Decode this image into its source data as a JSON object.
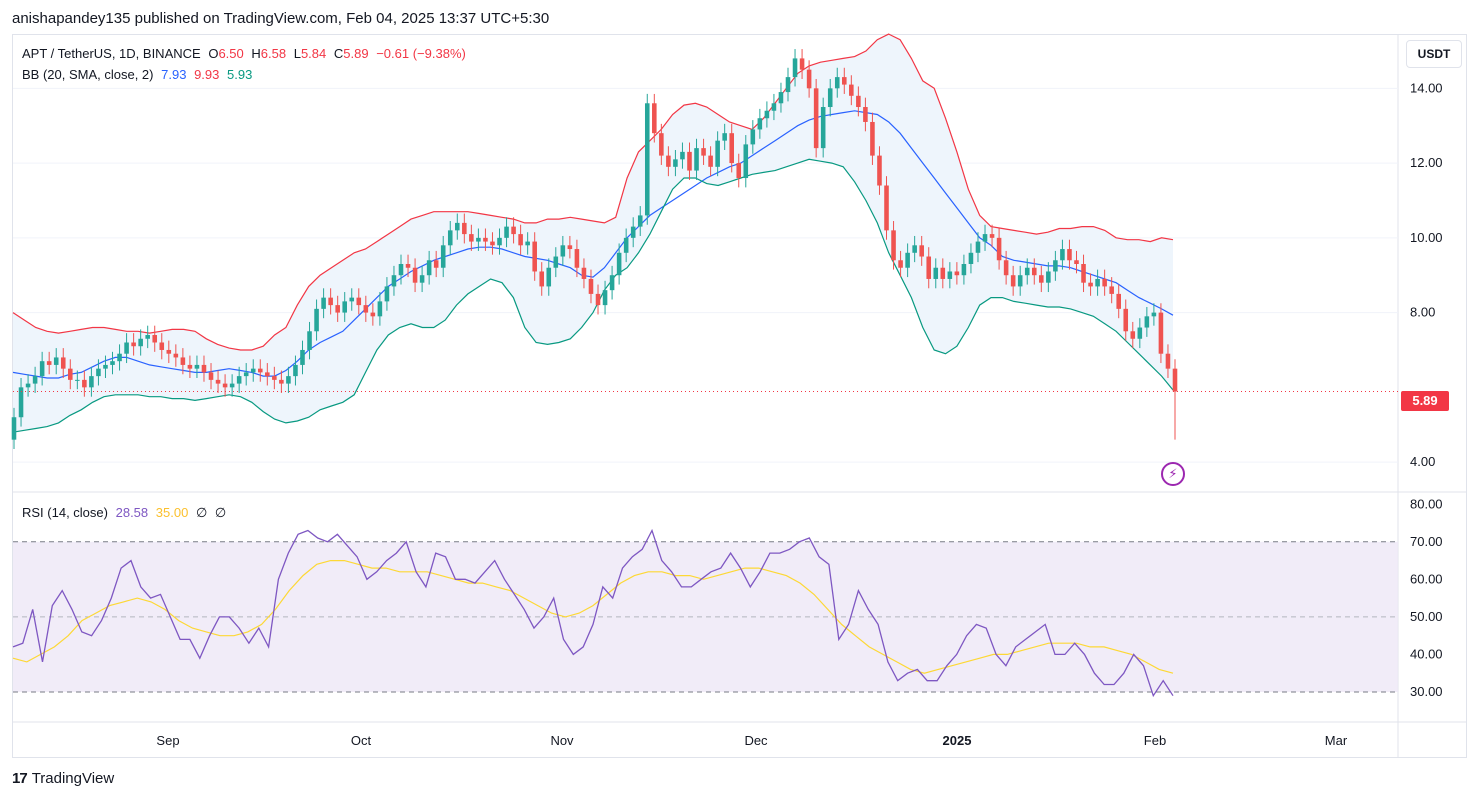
{
  "header": {
    "text": "anishapandey135 published on TradingView.com, Feb 04, 2025 13:37 UTC+5:30"
  },
  "legend": {
    "symbol": "APT / TetherUS, 1D, BINANCE",
    "o_label": "O",
    "o_val": "6.50",
    "h_label": "H",
    "h_val": "6.58",
    "l_label": "L",
    "l_val": "5.84",
    "c_label": "C",
    "c_val": "5.89",
    "change": "−0.61 (−9.38%)",
    "bb_label": "BB (20, SMA, close, 2)",
    "bb_basis": "7.93",
    "bb_upper": "9.93",
    "bb_lower": "5.93",
    "rsi_label": "RSI (14, close)",
    "rsi_val": "28.58",
    "rsi_ma": "35.00",
    "rsi_na1": "∅",
    "rsi_na2": "∅"
  },
  "currency_button": "USDT",
  "last_price_tag": "5.89",
  "footer": {
    "brand": "TradingView",
    "logo_glyph": "17"
  },
  "colors": {
    "up": "#26a69a",
    "down": "#ef5350",
    "bb_upper": "#f23645",
    "bb_basis": "#2962ff",
    "bb_lower": "#089981",
    "bb_fill": "#eef5fc",
    "rsi": "#7e57c2",
    "rsi_ma": "#fdd835",
    "rsi_band": "#ede7f6"
  },
  "icons": {
    "alert": "lightning-bolt-icon"
  },
  "chart_data": [
    {
      "type": "candlestick",
      "title": "APT / TetherUS, 1D, BINANCE",
      "y_ticks": [
        "14.00",
        "12.00",
        "10.00",
        "8.00",
        "4.00"
      ],
      "y_tick_values": [
        14,
        12,
        10,
        8,
        4
      ],
      "ylim": [
        3.2,
        15.4
      ],
      "x_ticks": [
        "Sep",
        "Oct",
        "Nov",
        "Dec",
        "2025",
        "Feb",
        "Mar"
      ],
      "last_close": 5.89,
      "closes": [
        5.2,
        6.0,
        6.1,
        6.3,
        6.7,
        6.6,
        6.8,
        6.5,
        6.2,
        6.2,
        6.0,
        6.3,
        6.5,
        6.6,
        6.7,
        6.9,
        7.2,
        7.1,
        7.3,
        7.4,
        7.2,
        7.0,
        6.9,
        6.8,
        6.6,
        6.5,
        6.6,
        6.4,
        6.2,
        6.1,
        6.0,
        6.1,
        6.3,
        6.4,
        6.5,
        6.4,
        6.3,
        6.2,
        6.1,
        6.3,
        6.6,
        7.0,
        7.5,
        8.1,
        8.4,
        8.2,
        8.0,
        8.3,
        8.4,
        8.2,
        8.0,
        7.9,
        8.3,
        8.7,
        9.0,
        9.3,
        9.2,
        8.8,
        9.0,
        9.4,
        9.2,
        9.8,
        10.2,
        10.4,
        10.1,
        9.9,
        10.0,
        9.9,
        9.8,
        10.0,
        10.3,
        10.1,
        9.8,
        9.9,
        9.1,
        8.7,
        9.2,
        9.5,
        9.8,
        9.7,
        9.2,
        8.9,
        8.5,
        8.2,
        8.6,
        9.0,
        9.6,
        10.0,
        10.3,
        10.6,
        13.6,
        12.8,
        12.2,
        11.9,
        12.1,
        12.3,
        11.8,
        12.4,
        12.2,
        11.9,
        12.6,
        12.8,
        12.0,
        11.6,
        12.5,
        12.9,
        13.2,
        13.4,
        13.6,
        13.9,
        14.3,
        14.8,
        14.5,
        14.0,
        12.4,
        13.5,
        14.0,
        14.3,
        14.1,
        13.8,
        13.5,
        13.1,
        12.2,
        11.4,
        10.2,
        9.4,
        9.2,
        9.6,
        9.8,
        9.5,
        8.9,
        9.2,
        8.9,
        9.1,
        9.0,
        9.3,
        9.6,
        9.9,
        10.1,
        10.0,
        9.4,
        9.0,
        8.7,
        9.0,
        9.2,
        9.0,
        8.8,
        9.1,
        9.4,
        9.7,
        9.4,
        9.3,
        8.8,
        8.7,
        8.9,
        8.7,
        8.5,
        8.1,
        7.5,
        7.3,
        7.6,
        7.9,
        8.0,
        6.9,
        6.5,
        5.89
      ],
      "bb_upper": [
        8.0,
        7.8,
        7.6,
        7.5,
        7.45,
        7.5,
        7.55,
        7.6,
        7.6,
        7.55,
        7.5,
        7.5,
        7.45,
        7.5,
        7.55,
        7.55,
        7.5,
        7.3,
        7.15,
        7.05,
        7.0,
        7.0,
        7.1,
        7.4,
        7.6,
        8.2,
        8.7,
        9.0,
        9.2,
        9.4,
        9.6,
        9.7,
        9.9,
        10.1,
        10.3,
        10.5,
        10.6,
        10.7,
        10.7,
        10.7,
        10.7,
        10.65,
        10.6,
        10.55,
        10.5,
        10.4,
        10.4,
        10.5,
        10.5,
        10.55,
        10.5,
        10.45,
        10.4,
        10.55,
        11.6,
        12.3,
        12.6,
        12.9,
        13.3,
        13.55,
        13.6,
        13.5,
        13.3,
        13.1,
        13.0,
        12.9,
        13.2,
        13.6,
        14.0,
        14.4,
        14.6,
        14.7,
        14.75,
        14.8,
        14.85,
        15.0,
        15.3,
        15.45,
        15.3,
        14.8,
        14.2,
        14.0,
        13.2,
        12.3,
        11.3,
        10.6,
        10.3,
        10.25,
        10.2,
        10.15,
        10.1,
        10.15,
        10.25,
        10.25,
        10.3,
        10.3,
        10.2,
        10.0,
        9.95,
        9.95,
        9.9,
        10.0,
        9.95
      ],
      "bb_basis": [
        6.4,
        6.35,
        6.3,
        6.25,
        6.25,
        6.35,
        6.4,
        6.55,
        6.7,
        6.8,
        6.8,
        6.7,
        6.6,
        6.55,
        6.5,
        6.45,
        6.4,
        6.4,
        6.45,
        6.5,
        6.45,
        6.4,
        6.3,
        6.3,
        6.45,
        6.7,
        7.0,
        7.2,
        7.35,
        7.5,
        7.8,
        8.1,
        8.4,
        8.7,
        8.9,
        9.1,
        9.25,
        9.4,
        9.5,
        9.6,
        9.7,
        9.75,
        9.75,
        9.7,
        9.6,
        9.5,
        9.45,
        9.4,
        9.3,
        9.2,
        9.0,
        8.95,
        9.2,
        9.6,
        10.0,
        10.3,
        10.6,
        10.8,
        11.0,
        11.2,
        11.4,
        11.6,
        11.75,
        11.9,
        12.0,
        12.2,
        12.4,
        12.6,
        12.8,
        13.0,
        13.15,
        13.25,
        13.3,
        13.35,
        13.4,
        13.35,
        13.3,
        13.1,
        12.8,
        12.4,
        12.0,
        11.6,
        11.2,
        10.8,
        10.4,
        10.0,
        9.8,
        9.5,
        9.4,
        9.35,
        9.3,
        9.25,
        9.25,
        9.2,
        9.1,
        9.0,
        8.9,
        8.8,
        8.6,
        8.4,
        8.25,
        8.1,
        7.93
      ],
      "bb_lower": [
        4.8,
        4.85,
        4.9,
        4.95,
        5.05,
        5.25,
        5.4,
        5.6,
        5.75,
        5.8,
        5.8,
        5.8,
        5.75,
        5.75,
        5.7,
        5.7,
        5.65,
        5.7,
        5.75,
        5.8,
        5.75,
        5.6,
        5.35,
        5.15,
        5.05,
        5.1,
        5.2,
        5.4,
        5.5,
        5.6,
        5.8,
        6.4,
        7.0,
        7.4,
        7.6,
        7.7,
        7.6,
        7.6,
        7.8,
        8.2,
        8.5,
        8.7,
        8.9,
        8.8,
        8.4,
        7.6,
        7.2,
        7.15,
        7.2,
        7.3,
        7.6,
        8.0,
        8.6,
        9.0,
        9.2,
        9.6,
        10.1,
        10.7,
        11.3,
        11.6,
        11.6,
        11.45,
        11.4,
        11.5,
        11.6,
        11.7,
        11.75,
        11.8,
        11.9,
        12.0,
        12.1,
        12.05,
        12.0,
        11.9,
        11.5,
        11.0,
        10.4,
        9.6,
        9.0,
        8.4,
        7.6,
        7.0,
        6.9,
        7.1,
        7.6,
        8.2,
        8.4,
        8.4,
        8.3,
        8.25,
        8.2,
        8.15,
        8.15,
        8.1,
        8.0,
        7.9,
        7.7,
        7.5,
        7.2,
        6.9,
        6.6,
        6.3,
        5.93
      ]
    },
    {
      "type": "line",
      "title": "RSI (14, close)",
      "y_ticks": [
        "80.00",
        "70.00",
        "60.00",
        "50.00",
        "40.00",
        "30.00"
      ],
      "y_tick_values": [
        80,
        70,
        60,
        50,
        40,
        30
      ],
      "ylim": [
        22,
        83
      ],
      "band": [
        30,
        70
      ],
      "series": [
        {
          "name": "RSI",
          "values": [
            42,
            43,
            52,
            38,
            53,
            57,
            52,
            46,
            45,
            49,
            55,
            63,
            65,
            58,
            55,
            56,
            50,
            44,
            44,
            39,
            45,
            50,
            50,
            47,
            43,
            47,
            42,
            60,
            67,
            72,
            73,
            71,
            70,
            72,
            69,
            66,
            60,
            62,
            65,
            67,
            70,
            62,
            58,
            67,
            66,
            60,
            60,
            59,
            62,
            65,
            60,
            56,
            52,
            47,
            50,
            55,
            44,
            40,
            42,
            48,
            58,
            55,
            63,
            66,
            68,
            73,
            65,
            62,
            58,
            58,
            60,
            62,
            63,
            67,
            63,
            58,
            62,
            67,
            67,
            68,
            70,
            71,
            66,
            64,
            44,
            48,
            57,
            52,
            48,
            38,
            33,
            35,
            36,
            33,
            33,
            37,
            40,
            45,
            48,
            47,
            40,
            37,
            42,
            44,
            46,
            48,
            40,
            40,
            43,
            40,
            35,
            32,
            32,
            35,
            40,
            37,
            29,
            33,
            29
          ]
        },
        {
          "name": "RSI MA",
          "values": [
            39,
            38,
            40,
            42,
            45,
            49,
            51,
            53,
            54,
            55,
            54,
            52,
            49,
            47,
            46,
            45,
            45,
            46,
            48,
            52,
            57,
            61,
            64,
            65,
            65,
            64,
            63,
            63,
            62,
            62,
            62,
            61,
            60,
            59,
            59,
            58,
            57,
            55,
            53,
            51,
            50,
            51,
            53,
            56,
            59,
            61,
            62,
            62,
            61,
            61,
            60,
            61,
            62,
            63,
            63,
            62,
            61,
            59,
            56,
            52,
            48,
            45,
            42,
            40,
            38,
            36,
            35,
            36,
            37,
            38,
            39,
            40,
            40,
            41,
            42,
            43,
            43,
            43,
            42,
            42,
            41,
            40,
            38,
            36,
            35
          ]
        }
      ]
    }
  ]
}
